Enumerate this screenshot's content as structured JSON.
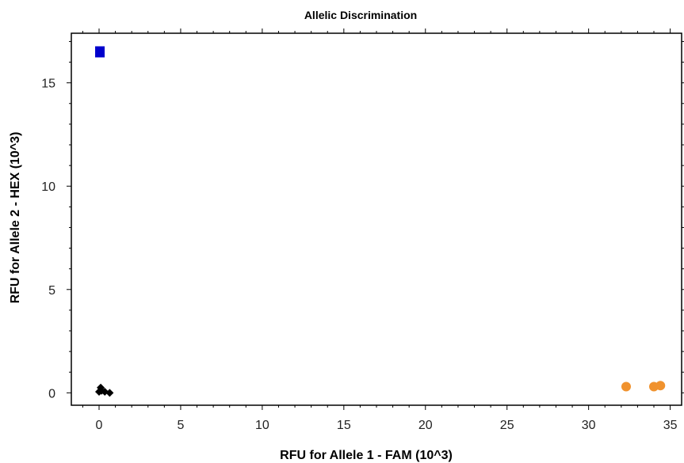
{
  "chart_data": {
    "type": "scatter",
    "title": "Allelic Discrimination",
    "xlabel": "RFU for Allele 1 - FAM (10^3)",
    "ylabel": "RFU for Allele 2 - HEX (10^3)",
    "xlim": [
      -1.7,
      35.7
    ],
    "ylim": [
      -0.6,
      17.4
    ],
    "xticks": [
      0,
      5,
      10,
      15,
      20,
      25,
      30,
      35
    ],
    "yticks": [
      0,
      5,
      10,
      15
    ],
    "grid": false,
    "series": [
      {
        "marker": "square",
        "color": "#0000cc",
        "points": [
          [
            0.05,
            16.5
          ]
        ]
      },
      {
        "marker": "circle",
        "color": "#f0922e",
        "points": [
          [
            32.3,
            0.3
          ],
          [
            34.0,
            0.3
          ],
          [
            34.4,
            0.35
          ]
        ]
      },
      {
        "marker": "diamond",
        "color": "#000000",
        "points": [
          [
            0.0,
            0.05
          ],
          [
            0.1,
            0.25
          ],
          [
            0.15,
            0.1
          ],
          [
            0.35,
            0.05
          ],
          [
            0.65,
            0.0
          ]
        ]
      }
    ]
  }
}
